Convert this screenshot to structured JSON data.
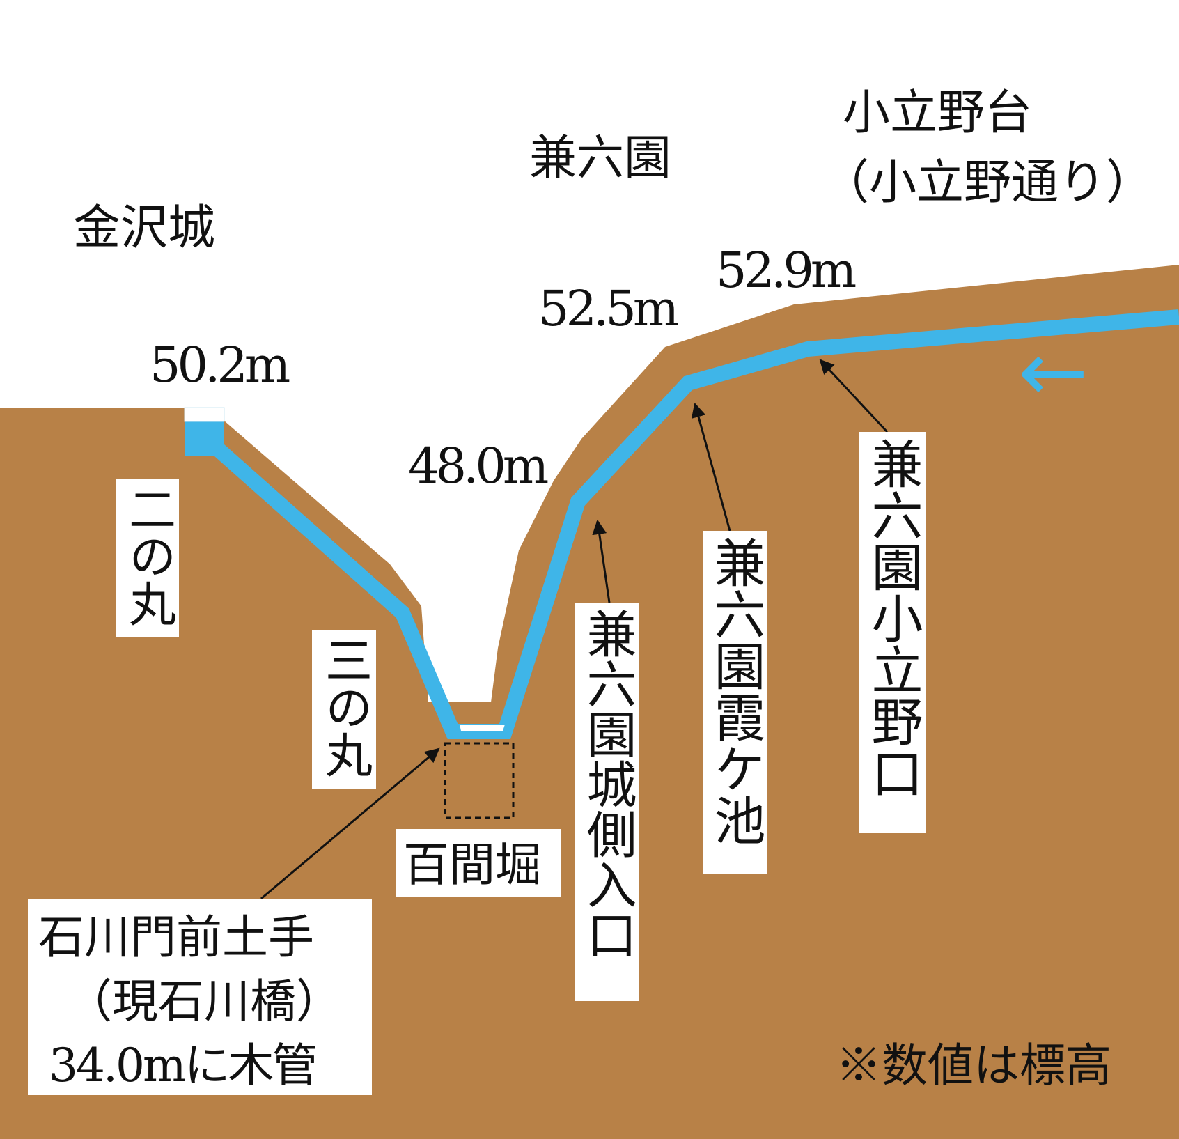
{
  "colors": {
    "earth": "#b88147",
    "water": "#3fb5e8",
    "label_bg": "#ffffff",
    "text": "#111111"
  },
  "places": {
    "kanazawa_castle": "金沢城",
    "kenrokuen": "兼六園",
    "kodatsuno_plateau": "小立野台",
    "kodatsuno_street": "（小立野通り）"
  },
  "elevations": {
    "ninomaru_top": "50.2m",
    "moat_bottom": "48.0m",
    "castle_side_entrance": "52.5m",
    "kodatsuno_entrance": "52.9m"
  },
  "labels": {
    "ninomaru": "二の丸",
    "sannomaru": "三の丸",
    "hyakken_bori": "百間堀",
    "castle_side_entrance": "兼六園城側入口",
    "kasumigaike": "兼六園霞ケ池",
    "kodatsuno_entrance": "兼六園小立野口"
  },
  "callout": {
    "line1": "石川門前土手",
    "line2": "（現石川橋）",
    "line3": "34.0mに木管"
  },
  "note": "※数値は標高",
  "flow_direction": "←"
}
